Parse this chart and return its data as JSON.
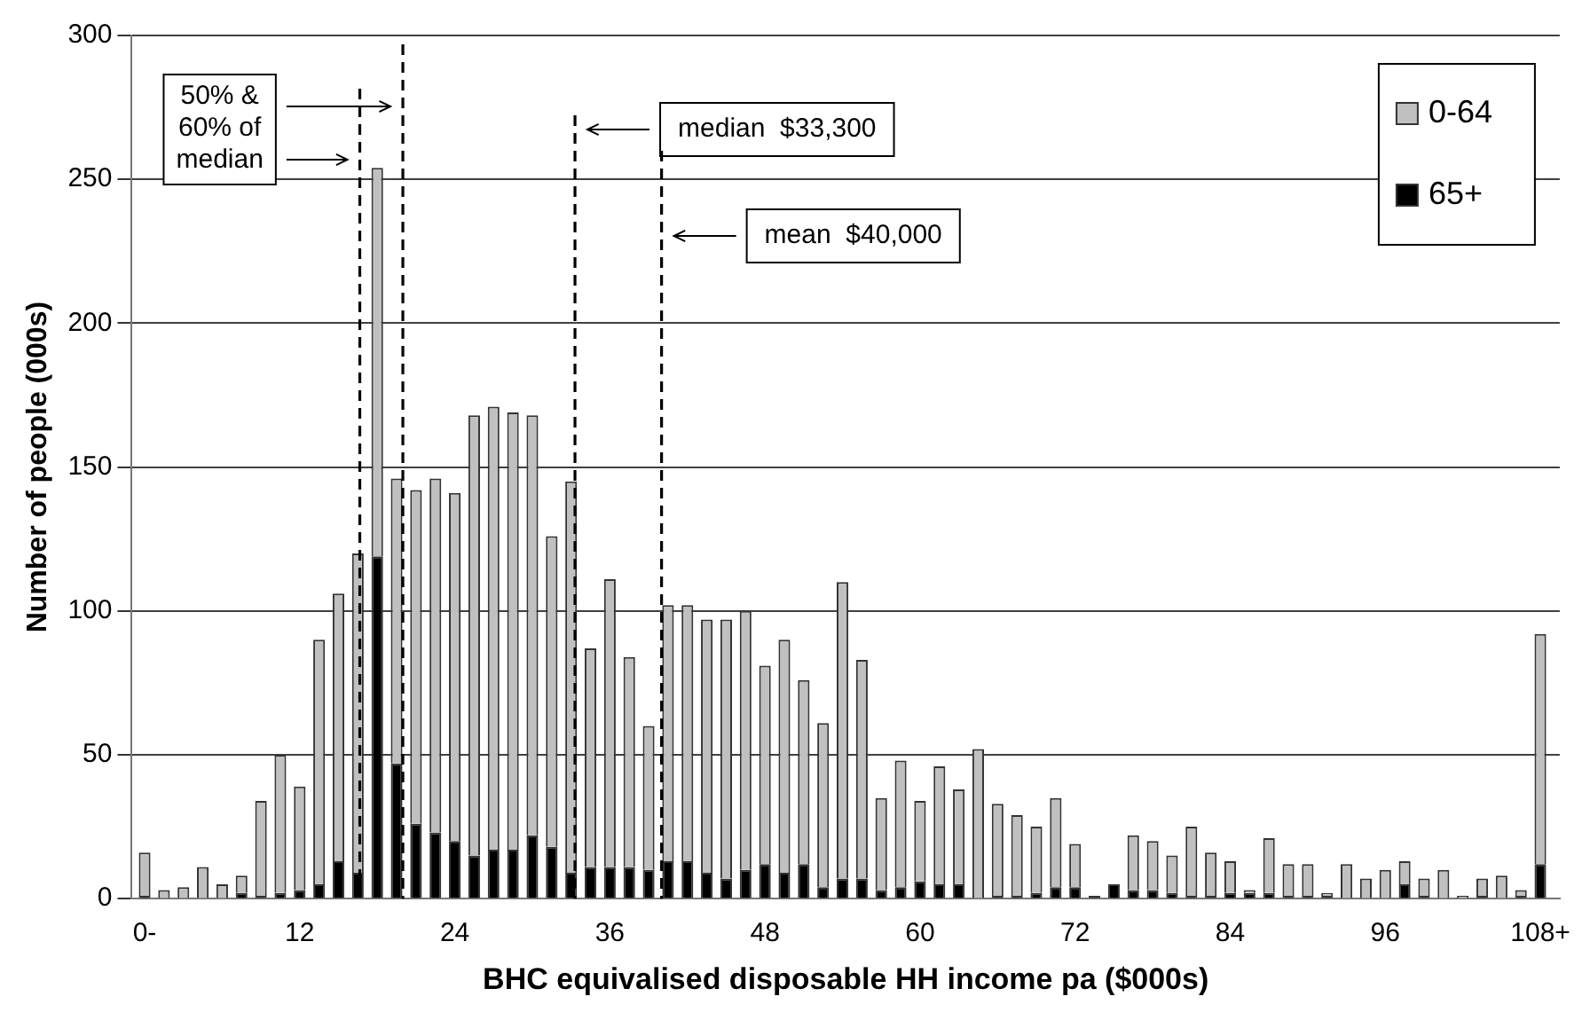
{
  "chart_data": {
    "type": "bar",
    "stacked": true,
    "xlabel": "BHC equivalised disposable HH income pa ($000s)",
    "ylabel": "Number of people (000s)",
    "x": [
      0,
      1.5,
      3,
      4.5,
      6,
      7.5,
      9,
      10.5,
      12,
      13.5,
      15,
      16.5,
      18,
      19.5,
      21,
      22.5,
      24,
      25.5,
      27,
      28.5,
      30,
      31.5,
      33,
      34.5,
      36,
      37.5,
      39,
      40.5,
      42,
      43.5,
      45,
      46.5,
      48,
      49.5,
      51,
      52.5,
      54,
      55.5,
      57,
      58.5,
      60,
      61.5,
      63,
      64.5,
      66,
      67.5,
      69,
      70.5,
      72,
      73.5,
      75,
      76.5,
      78,
      79.5,
      81,
      82.5,
      84,
      85.5,
      87,
      88.5,
      90,
      91.5,
      93,
      94.5,
      96,
      97.5,
      99,
      100.5,
      102,
      103.5,
      105,
      106.5,
      108
    ],
    "series": [
      {
        "name": "65+",
        "color": "#000000",
        "values": [
          1,
          0,
          0,
          0,
          0,
          2,
          1,
          2,
          3,
          5,
          13,
          9,
          119,
          47,
          26,
          23,
          20,
          15,
          17,
          17,
          22,
          18,
          9,
          11,
          11,
          11,
          10,
          13,
          13,
          9,
          7,
          10,
          12,
          9,
          12,
          4,
          7,
          7,
          3,
          4,
          6,
          5,
          5,
          0,
          1,
          1,
          2,
          4,
          4,
          1,
          5,
          3,
          3,
          2,
          1,
          1,
          2,
          2,
          2,
          1,
          1,
          1,
          0,
          0,
          0,
          5,
          1,
          0,
          0,
          1,
          0,
          1,
          12
        ]
      },
      {
        "name": "0-64",
        "color": "#c0c0c0",
        "values": [
          15,
          3,
          4,
          11,
          5,
          6,
          33,
          48,
          36,
          85,
          93,
          111,
          135,
          99,
          116,
          123,
          121,
          153,
          154,
          152,
          146,
          108,
          136,
          76,
          100,
          73,
          50,
          89,
          89,
          88,
          90,
          90,
          69,
          81,
          64,
          57,
          103,
          76,
          32,
          44,
          28,
          41,
          33,
          52,
          32,
          28,
          23,
          31,
          15,
          0,
          0,
          19,
          17,
          13,
          24,
          15,
          11,
          1,
          19,
          11,
          11,
          1,
          12,
          7,
          10,
          8,
          6,
          10,
          1,
          6,
          8,
          2,
          80
        ]
      }
    ],
    "xlim": [
      -1,
      109.5
    ],
    "xticks": [
      {
        "value": 0,
        "label": "0-"
      },
      12,
      24,
      36,
      48,
      60,
      72,
      84,
      96,
      {
        "value": 108,
        "label": "108+"
      }
    ],
    "ylim": [
      0,
      300
    ],
    "yticks": [
      0,
      50,
      100,
      150,
      200,
      250,
      300
    ],
    "grid": "y",
    "legend": "top right",
    "ref_lines": [
      {
        "axis": "x",
        "value": 16.65,
        "label": null,
        "line_style": "dashed"
      },
      {
        "axis": "x",
        "value": 19.98,
        "label": null,
        "line_style": "dashed"
      },
      {
        "axis": "x",
        "value": 33.3,
        "label": "median  $33,300",
        "line_style": "dashed"
      },
      {
        "axis": "x",
        "value": 40,
        "label": "mean  $40,000",
        "line_style": "dashed"
      }
    ],
    "annotations": [
      "50% & 60% of median"
    ]
  }
}
